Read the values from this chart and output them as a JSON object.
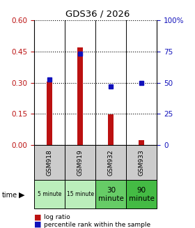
{
  "title": "GDS36 / 2026",
  "samples": [
    "GSM918",
    "GSM919",
    "GSM932",
    "GSM933"
  ],
  "time_labels": [
    "5 minute",
    "15 minute",
    "30\nminute",
    "90\nminute"
  ],
  "time_bg_colors": [
    "#bbeebb",
    "#bbeebb",
    "#66cc66",
    "#44bb44"
  ],
  "log_ratio": [
    0.305,
    0.47,
    0.148,
    0.022
  ],
  "percentile_rank": [
    52.5,
    73.5,
    47.0,
    50.0
  ],
  "ylim_left": [
    0,
    0.6
  ],
  "ylim_right": [
    0,
    100
  ],
  "yticks_left": [
    0,
    0.15,
    0.3,
    0.45,
    0.6
  ],
  "yticks_right": [
    0,
    25,
    50,
    75,
    100
  ],
  "bar_color": "#bb1111",
  "dot_color": "#1111bb",
  "bar_width": 0.18,
  "sample_bg_color": "#cccccc",
  "legend_log_ratio_color": "#bb1111",
  "legend_percentile_color": "#1111bb"
}
